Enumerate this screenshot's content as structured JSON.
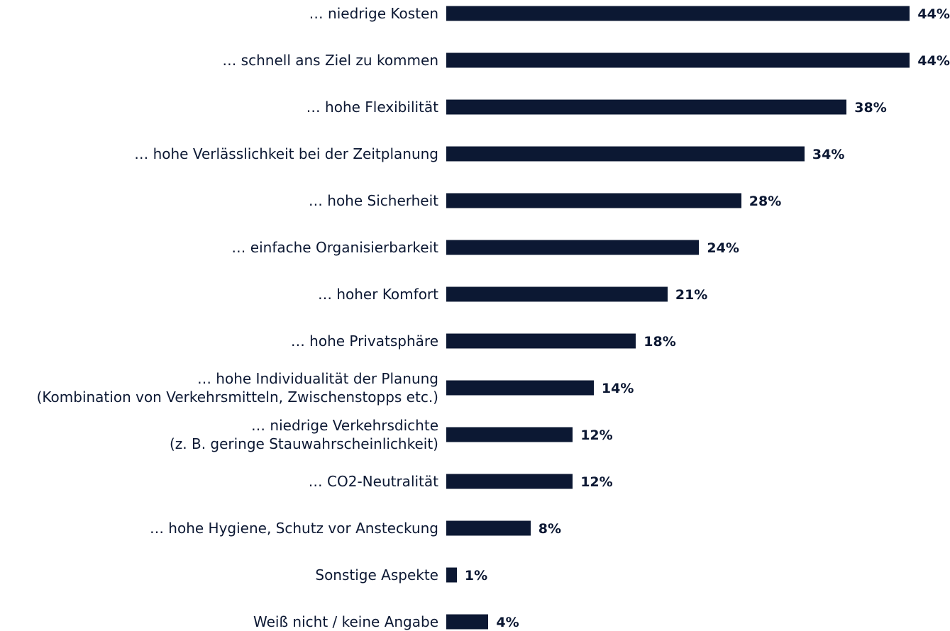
{
  "chart_data": {
    "type": "bar",
    "orientation": "horizontal",
    "color": "#0c1833",
    "categories": [
      "… niedrige Kosten",
      "… schnell ans Ziel zu kommen",
      "… hohe Flexibilität",
      "… hohe Verlässlichkeit bei der Zeitplanung",
      "… hohe Sicherheit",
      "… einfache Organisierbarkeit",
      "… hoher Komfort",
      "… hohe Privatsphäre",
      "… hohe Individualität der Planung\n(Kombination von Verkehrsmitteln, Zwischenstopps etc.)",
      "… niedrige Verkehrsdichte\n(z. B. geringe Stauwahrscheinlichkeit)",
      "… CO2-Neutralität",
      "… hohe Hygiene,  Schutz vor Ansteckung",
      "Sonstige Aspekte",
      "Weiß nicht / keine Angabe"
    ],
    "values": [
      44,
      44,
      38,
      34,
      28,
      24,
      21,
      18,
      14,
      12,
      12,
      8,
      1,
      4
    ],
    "value_labels": [
      "44%",
      "44%",
      "38%",
      "34%",
      "28%",
      "24%",
      "21%",
      "18%",
      "14%",
      "12%",
      "12%",
      "8%",
      "1%",
      "4%"
    ]
  }
}
